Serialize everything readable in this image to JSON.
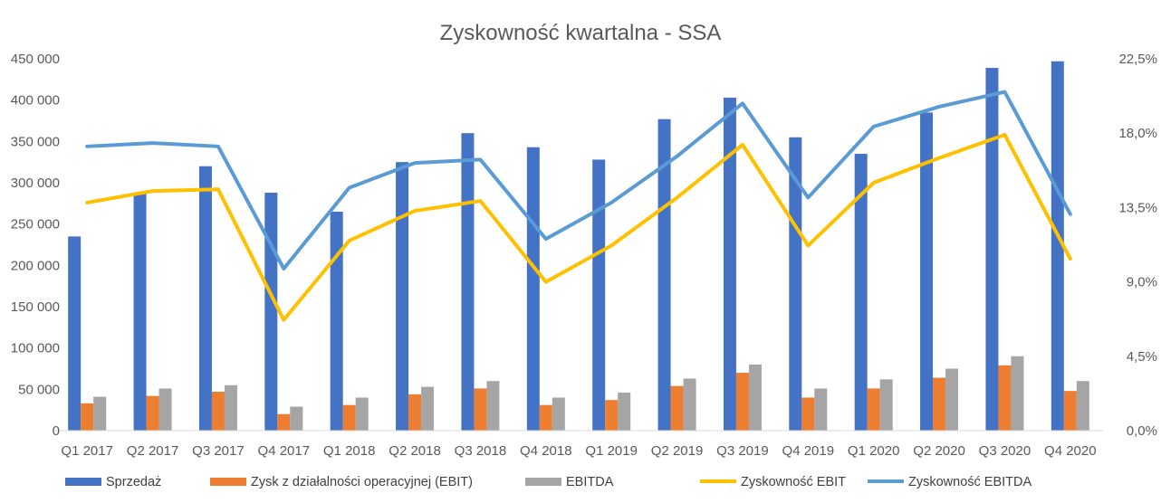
{
  "chart_data": {
    "type": "bar",
    "title": "Zyskowność kwartalna - SSA",
    "categories": [
      "Q1 2017",
      "Q2 2017",
      "Q3 2017",
      "Q4 2017",
      "Q1 2018",
      "Q2 2018",
      "Q3 2018",
      "Q4 2018",
      "Q1 2019",
      "Q2 2019",
      "Q3 2019",
      "Q4 2019",
      "Q1 2020",
      "Q2 2020",
      "Q3 2020",
      "Q4 2020"
    ],
    "y_left": {
      "ylim": [
        0,
        450000
      ],
      "ticks": [
        0,
        50000,
        100000,
        150000,
        200000,
        250000,
        300000,
        350000,
        400000,
        450000
      ],
      "tick_labels": [
        "0",
        "50 000",
        "100 000",
        "150 000",
        "200 000",
        "250 000",
        "300 000",
        "350 000",
        "400 000",
        "450 000"
      ]
    },
    "y_right": {
      "ylim": [
        0,
        22.5
      ],
      "ticks": [
        0,
        4.5,
        9,
        13.5,
        18,
        22.5
      ],
      "tick_labels": [
        "0,0%",
        "4,5%",
        "9,0%",
        "13,5%",
        "18,0%",
        "22,5%"
      ]
    },
    "grid": false,
    "legend_position": "bottom",
    "series": [
      {
        "name": "Sprzedaż",
        "type": "bar",
        "axis": "left",
        "color": "#4472C4",
        "values": [
          235000,
          287000,
          320000,
          288000,
          265000,
          325000,
          360000,
          343000,
          328000,
          377000,
          403000,
          355000,
          335000,
          385000,
          439000,
          447000
        ]
      },
      {
        "name": "Zysk z działalności operacyjnej (EBIT)",
        "type": "bar",
        "axis": "left",
        "color": "#ED7D31",
        "values": [
          33000,
          42000,
          47000,
          20000,
          31000,
          44000,
          51000,
          31000,
          37000,
          54000,
          70000,
          40000,
          51000,
          64000,
          79000,
          48000
        ]
      },
      {
        "name": "EBITDA",
        "type": "bar",
        "axis": "left",
        "color": "#A5A5A5",
        "values": [
          41000,
          51000,
          55000,
          29000,
          40000,
          53000,
          60000,
          40000,
          46000,
          63000,
          80000,
          51000,
          62000,
          75000,
          90000,
          60000
        ]
      },
      {
        "name": "Zyskowność EBIT",
        "type": "line",
        "axis": "right",
        "color": "#FFC000",
        "values": [
          13.8,
          14.5,
          14.6,
          6.7,
          11.5,
          13.3,
          13.9,
          9.0,
          11.2,
          14.1,
          17.3,
          11.2,
          15.0,
          16.5,
          17.9,
          10.4
        ]
      },
      {
        "name": "Zyskowność EBITDA",
        "type": "line",
        "axis": "right",
        "color": "#5B9BD5",
        "values": [
          17.2,
          17.4,
          17.2,
          9.8,
          14.7,
          16.2,
          16.4,
          11.6,
          13.8,
          16.6,
          19.8,
          14.1,
          18.4,
          19.6,
          20.5,
          13.1
        ]
      }
    ]
  }
}
